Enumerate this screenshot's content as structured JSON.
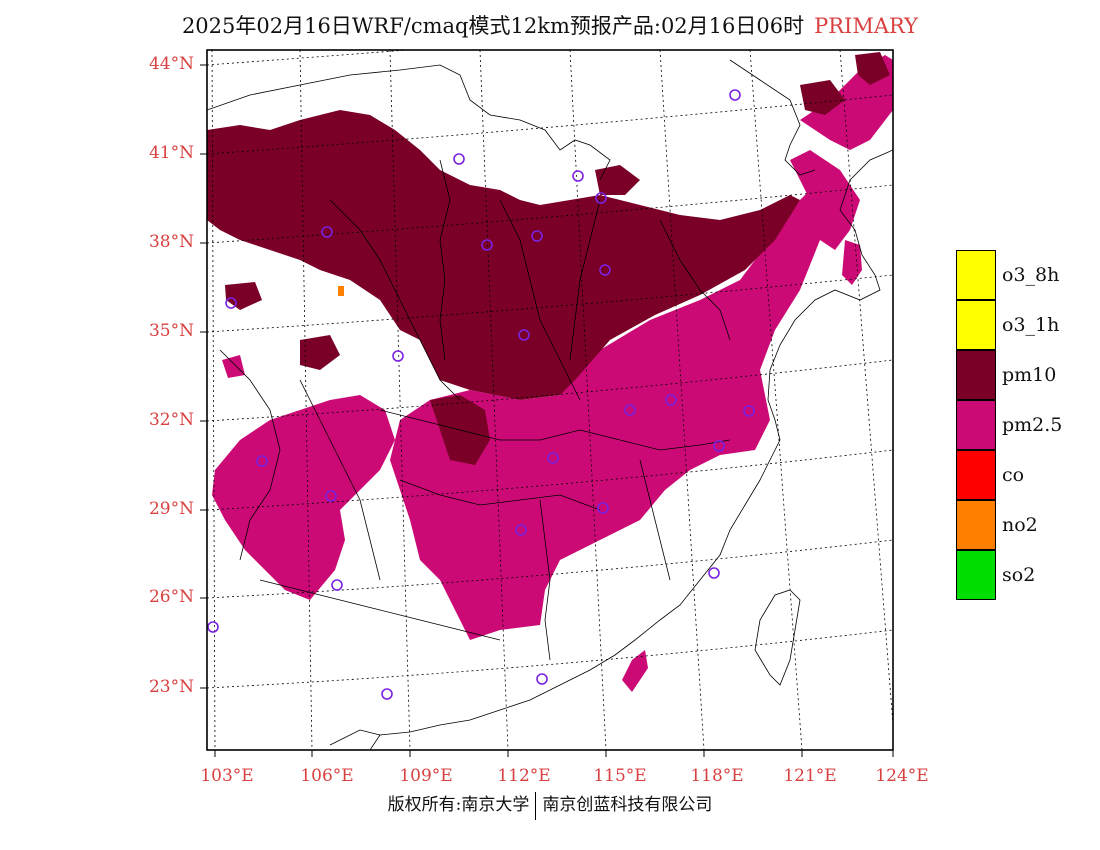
{
  "title": {
    "main": "2025年02月16日WRF/cmaq模式12km预报产品:02月16日06时",
    "tag": "PRIMARY"
  },
  "axes": {
    "lat_labels": [
      "44°N",
      "41°N",
      "38°N",
      "35°N",
      "32°N",
      "29°N",
      "26°N",
      "23°N"
    ],
    "lon_labels": [
      "103°E",
      "106°E",
      "109°E",
      "112°E",
      "115°E",
      "118°E",
      "121°E",
      "124°E"
    ]
  },
  "legend": [
    {
      "label": "o3_8h",
      "color": "#ffff00"
    },
    {
      "label": "o3_1h",
      "color": "#ffff00"
    },
    {
      "label": "pm10",
      "color": "#7a0027"
    },
    {
      "label": "pm2.5",
      "color": "#cc0a76"
    },
    {
      "label": "co",
      "color": "#ff0000"
    },
    {
      "label": "no2",
      "color": "#ff8000"
    },
    {
      "label": "so2",
      "color": "#00dd00"
    }
  ],
  "colors": {
    "pm10": "#7a0027",
    "pm25": "#cc0a76",
    "no2": "#ff8000",
    "station": "#7a22e0",
    "label": "#d94040"
  },
  "footer": {
    "left": "版权所有:南京大学",
    "right": "南京创蓝科技有限公司"
  }
}
